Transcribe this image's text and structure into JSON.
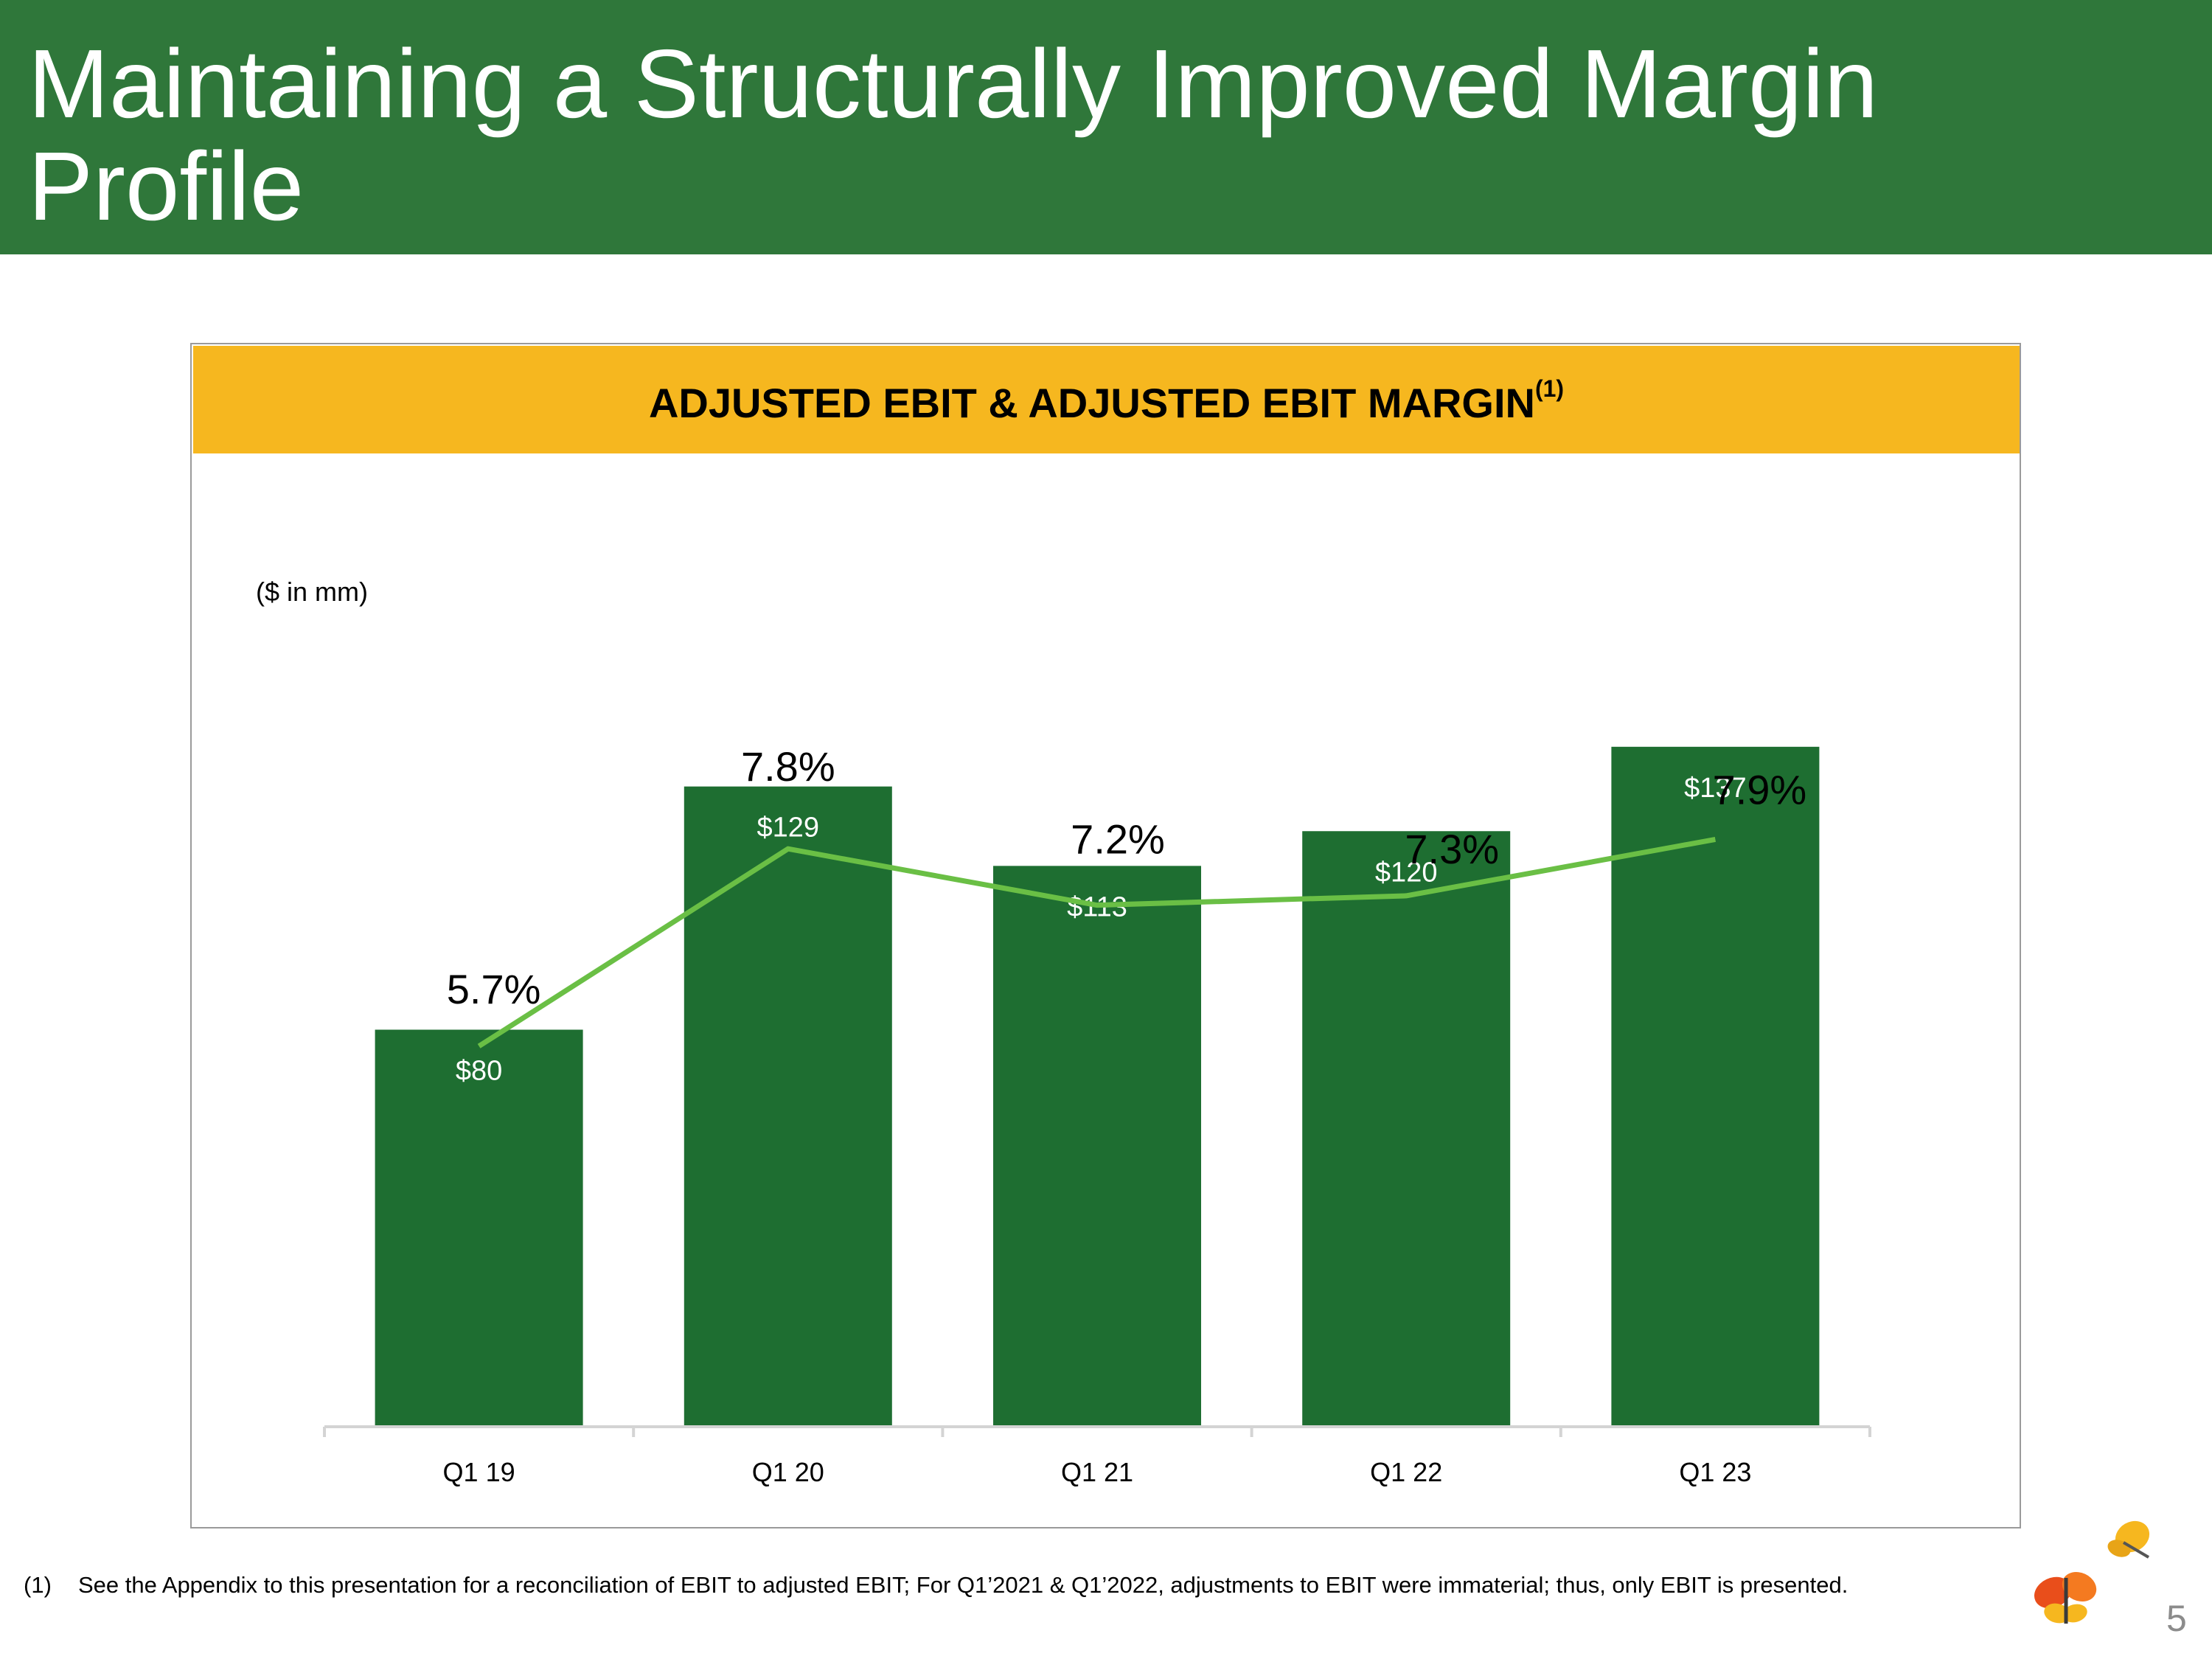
{
  "slide": {
    "title": "Maintaining a Structurally Improved Margin Profile",
    "page_number": "5"
  },
  "chart_box": {
    "title": "ADJUSTED EBIT & ADJUSTED EBIT MARGIN",
    "title_superscript": "(1)",
    "units_note": "($ in mm)"
  },
  "chart_data": {
    "type": "bar",
    "title": "ADJUSTED EBIT & ADJUSTED EBIT MARGIN",
    "categories": [
      "Q1 19",
      "Q1 20",
      "Q1 21",
      "Q1 22",
      "Q1 23"
    ],
    "series": [
      {
        "name": "Adjusted EBIT",
        "type": "bar",
        "values": [
          80,
          129,
          113,
          120,
          137
        ],
        "labels": [
          "$80",
          "$129",
          "$113",
          "$120",
          "$137"
        ],
        "color": "#1e6e31"
      },
      {
        "name": "Adjusted EBIT Margin",
        "type": "line",
        "values": [
          5.7,
          7.8,
          7.2,
          7.3,
          7.9
        ],
        "labels": [
          "5.7%",
          "7.8%",
          "7.2%",
          "7.3%",
          "7.9%"
        ],
        "color": "#6abf45"
      }
    ],
    "ylabel": "($ in mm)",
    "xlabel": "",
    "ylim": [
      0,
      160
    ],
    "margin_range": [
      2.2,
      10.1
    ],
    "grid": false
  },
  "footnote": {
    "number": "(1)",
    "text": "See the Appendix to this presentation for a reconciliation of EBIT to adjusted EBIT;  For Q1’2021 & Q1’2022, adjustments to EBIT were immaterial; thus, only EBIT is presented."
  },
  "colors": {
    "header": "#2f773a",
    "banner": "#f6b71f",
    "bar": "#1e6e31",
    "line": "#6abf45"
  }
}
